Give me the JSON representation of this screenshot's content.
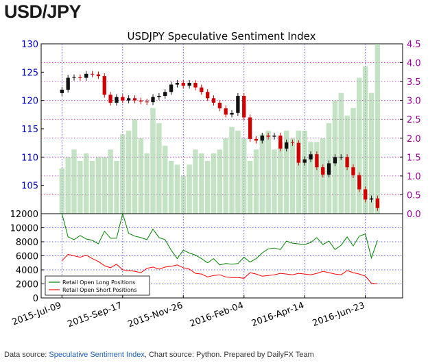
{
  "page_title": "USD/JPY",
  "footer": {
    "prefix": "Data source: ",
    "link_text": "Speculative Sentiment Index",
    "suffix": ", Chart source: Python. Prepared by DailyFX Team"
  },
  "chart_data": [
    {
      "type": "line",
      "title": "USDJPY Speculative Sentiment Index",
      "subtype": "candlestick price with sentiment-index bars",
      "x_ticks": [
        "2015-Jul-09",
        "2015-Sep-17",
        "2015-Nov-26",
        "2016-Feb-04",
        "2016-Apr-14",
        "2016-Jun-23"
      ],
      "x_range": [
        "2015-Jun-15",
        "2016-Aug-05"
      ],
      "y_left": {
        "ticks": [
          105,
          110,
          115,
          120,
          125,
          130
        ],
        "range": [
          100,
          130
        ],
        "color": "#0000cc"
      },
      "y_right": {
        "ticks": [
          0.0,
          0.5,
          1.0,
          1.5,
          2.0,
          2.5,
          3.0,
          3.5,
          4.0,
          4.5
        ],
        "range": [
          0.0,
          4.5
        ],
        "color": "#990099"
      },
      "grid": true,
      "price_series": {
        "name": "USD/JPY",
        "dates": [
          "2015-Jul-09",
          "2015-Jul-16",
          "2015-Jul-23",
          "2015-Jul-30",
          "2015-Aug-06",
          "2015-Aug-13",
          "2015-Aug-20",
          "2015-Aug-27",
          "2015-Sep-03",
          "2015-Sep-10",
          "2015-Sep-17",
          "2015-Sep-24",
          "2015-Oct-01",
          "2015-Oct-08",
          "2015-Oct-15",
          "2015-Oct-22",
          "2015-Oct-29",
          "2015-Nov-05",
          "2015-Nov-12",
          "2015-Nov-19",
          "2015-Nov-26",
          "2015-Dec-03",
          "2015-Dec-10",
          "2015-Dec-17",
          "2015-Dec-24",
          "2015-Dec-31",
          "2016-Jan-07",
          "2016-Jan-14",
          "2016-Jan-21",
          "2016-Jan-28",
          "2016-Feb-04",
          "2016-Feb-11",
          "2016-Feb-18",
          "2016-Feb-25",
          "2016-Mar-03",
          "2016-Mar-10",
          "2016-Mar-17",
          "2016-Mar-24",
          "2016-Mar-31",
          "2016-Apr-07",
          "2016-Apr-14",
          "2016-Apr-21",
          "2016-Apr-28",
          "2016-May-05",
          "2016-May-12",
          "2016-May-19",
          "2016-May-26",
          "2016-Jun-02",
          "2016-Jun-09",
          "2016-Jun-16",
          "2016-Jun-23",
          "2016-Jun-30",
          "2016-Jul-07"
        ],
        "close": [
          121.9,
          124.0,
          124.1,
          124.0,
          124.7,
          124.6,
          124.3,
          121.0,
          119.6,
          120.6,
          120.0,
          120.4,
          120.0,
          119.8,
          119.7,
          120.6,
          120.8,
          121.5,
          122.8,
          123.1,
          122.6,
          123.1,
          122.3,
          121.5,
          120.4,
          119.6,
          118.6,
          117.5,
          117.8,
          120.8,
          117.0,
          113.2,
          112.9,
          113.8,
          113.6,
          113.8,
          111.5,
          112.6,
          112.5,
          109.0,
          109.6,
          110.5,
          108.2,
          106.9,
          108.9,
          110.0,
          110.0,
          108.2,
          106.8,
          104.3,
          102.5,
          102.7,
          101.0
        ]
      },
      "sentiment_index": {
        "name": "SSI",
        "values": [
          1.2,
          1.5,
          1.7,
          1.4,
          1.6,
          1.4,
          1.5,
          1.5,
          1.7,
          1.4,
          2.1,
          2.2,
          2.5,
          2.0,
          1.6,
          2.8,
          2.4,
          1.8,
          1.4,
          1.3,
          1.0,
          1.3,
          1.7,
          1.6,
          1.4,
          1.6,
          1.7,
          2.0,
          2.3,
          2.2,
          2.0,
          1.4,
          1.7,
          2.1,
          2.2,
          1.7,
          1.9,
          2.2,
          2.0,
          2.2,
          2.2,
          1.9,
          1.9,
          2.0,
          2.4,
          3.0,
          3.2,
          2.6,
          2.8,
          3.6,
          3.9,
          3.2,
          4.5
        ]
      }
    },
    {
      "type": "line",
      "y_ticks": [
        0,
        2000,
        4000,
        6000,
        8000,
        10000,
        12000
      ],
      "y_range": [
        0,
        12000
      ],
      "grid": true,
      "legend_position": "bottom-left",
      "series": [
        {
          "name": "Retail Open Long Positions",
          "color": "#008000",
          "values": [
            12000,
            8700,
            8300,
            8900,
            8400,
            8200,
            7700,
            9500,
            8500,
            8500,
            12000,
            9200,
            8800,
            8600,
            8300,
            9800,
            8600,
            8300,
            6800,
            5600,
            6800,
            6400,
            6100,
            5600,
            5000,
            5600,
            4700,
            4900,
            4800,
            4900,
            5800,
            5100,
            5600,
            6400,
            7000,
            7100,
            6900,
            8100,
            7800,
            7700,
            7600,
            7900,
            8600,
            7600,
            8100,
            6900,
            7500,
            8700,
            7400,
            8800,
            9100,
            5700,
            8200
          ]
        },
        {
          "name": "Retail Open Short Positions",
          "color": "#ff0000",
          "values": [
            5300,
            6200,
            6000,
            5800,
            6100,
            5600,
            5200,
            4600,
            4300,
            4800,
            4000,
            3900,
            3800,
            3600,
            4200,
            4400,
            4100,
            4400,
            4500,
            4700,
            4300,
            4100,
            3500,
            3400,
            3000,
            3200,
            3300,
            3000,
            2900,
            2900,
            2800,
            3600,
            3400,
            3100,
            3200,
            3300,
            3500,
            3400,
            3300,
            3500,
            3400,
            3300,
            3500,
            3800,
            3600,
            3400,
            3300,
            3900,
            3600,
            3400,
            3100,
            2100,
            2000
          ]
        }
      ]
    }
  ]
}
